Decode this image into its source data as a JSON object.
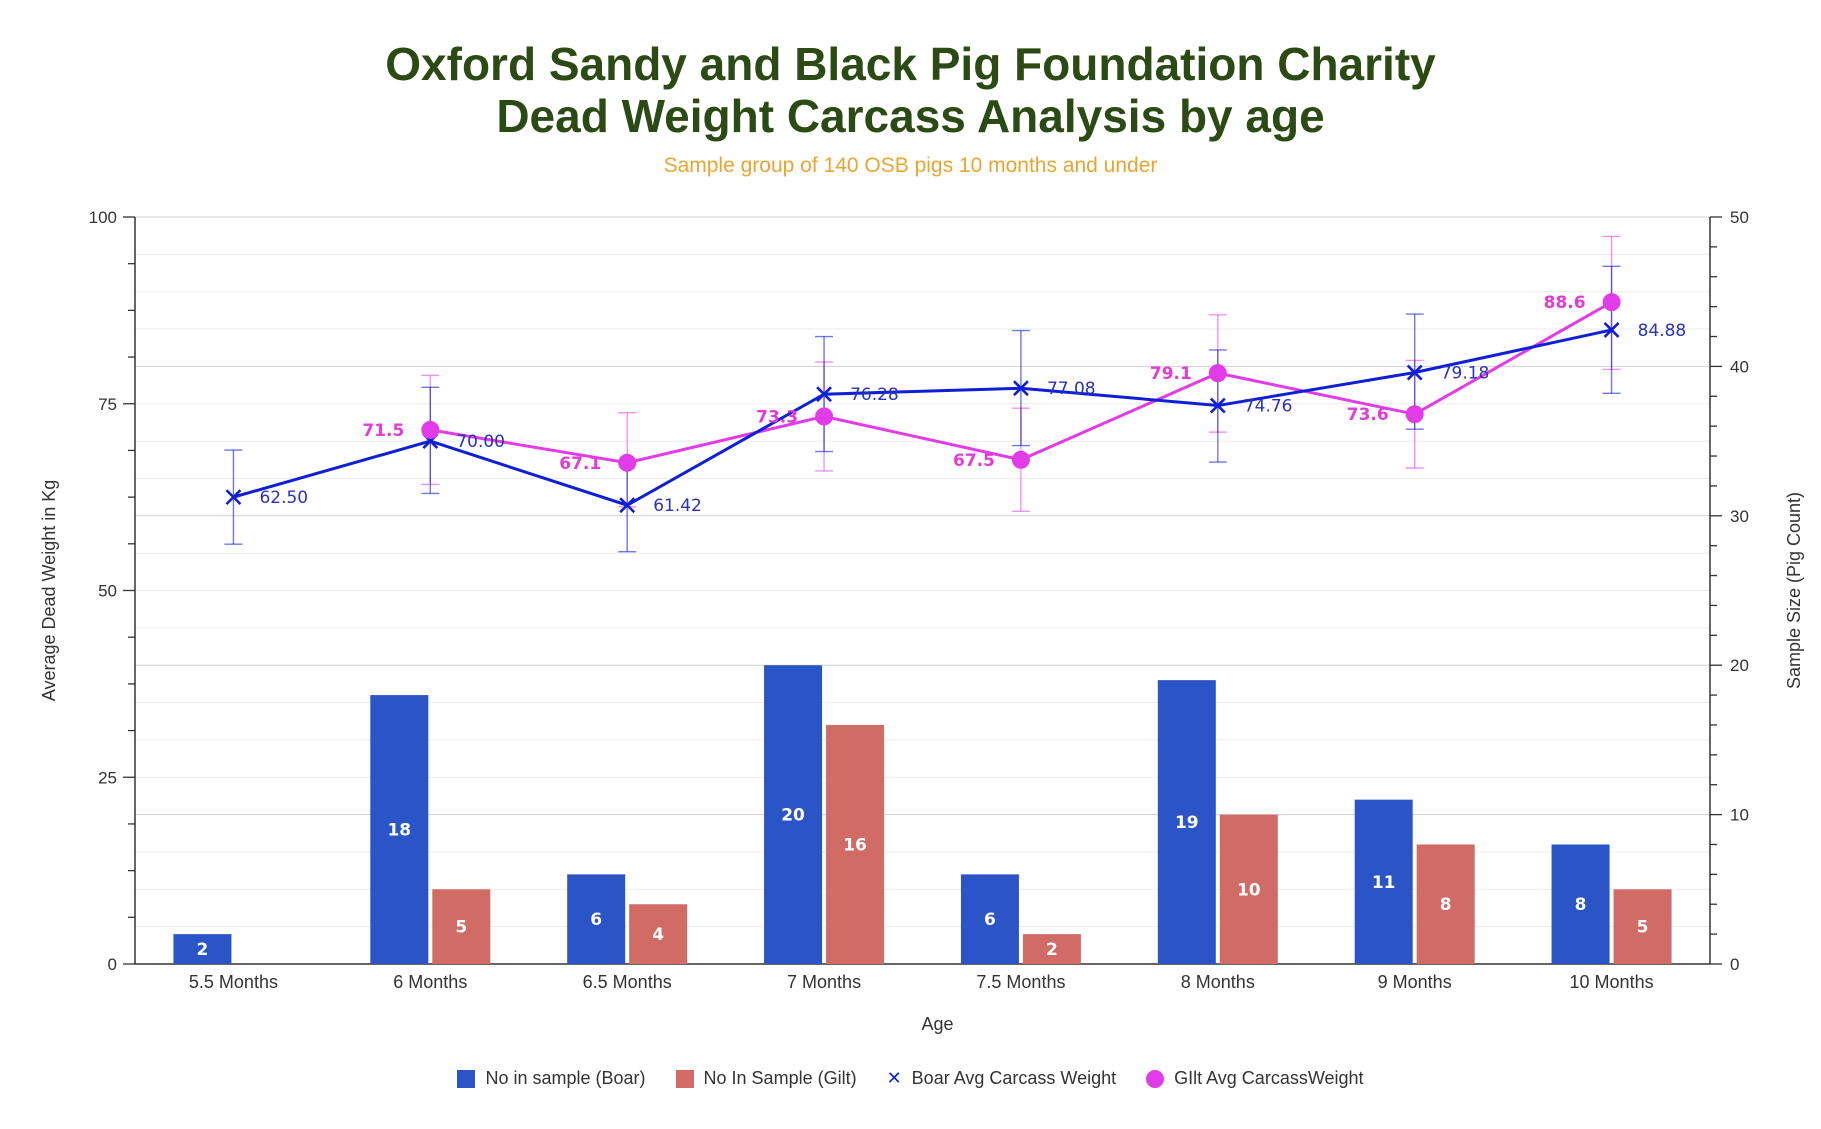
{
  "chart_data": {
    "type": "bar",
    "title_lines": [
      "Oxford Sandy and Black Pig Foundation Charity",
      "Dead Weight Carcass Analysis by age"
    ],
    "subtitle": "Sample group of 140 OSB pigs 10 months and under",
    "xlabel": "Age",
    "ylabel_left": "Average Dead Weight in Kg",
    "ylabel_right": "Sample Size (Pig Count)",
    "ylim_left": [
      0,
      100
    ],
    "yticks_left": [
      0,
      25,
      50,
      75,
      100
    ],
    "ylim_right": [
      0,
      50
    ],
    "yticks_right": [
      0,
      10,
      20,
      30,
      40,
      50
    ],
    "categories": [
      "5.5 Months",
      "6 Months",
      "6.5 Months",
      "7 Months",
      "7.5 Months",
      "8 Months",
      "9 Months",
      "10 Months"
    ],
    "series": [
      {
        "name": "No in sample (Boar)",
        "type": "bar",
        "axis": "right",
        "color": "#2b55c6",
        "values": [
          2,
          18,
          6,
          20,
          6,
          19,
          11,
          8
        ],
        "labels": [
          "2",
          "18",
          "6",
          "20",
          "6",
          "19",
          "11",
          "8"
        ]
      },
      {
        "name": "No In Sample (Gilt)",
        "type": "bar",
        "axis": "right",
        "color": "#d06b66",
        "values": [
          0,
          5,
          4,
          16,
          2,
          10,
          8,
          5
        ],
        "labels": [
          "",
          "5",
          "4",
          "16",
          "2",
          "10",
          "8",
          "5"
        ]
      },
      {
        "name": "Boar Avg Carcass Weight",
        "type": "line",
        "axis": "left",
        "color": "#0f1fd6",
        "marker": "x",
        "values": [
          62.5,
          70.0,
          61.42,
          76.28,
          77.08,
          74.76,
          79.18,
          84.88
        ],
        "labels": [
          "62.50",
          "70.00",
          "61.42",
          "76.28",
          "77.08",
          "74.76",
          "79.18",
          "84.88"
        ],
        "error_low": [
          56.2,
          63.0,
          55.2,
          68.6,
          69.4,
          67.2,
          71.6,
          76.4
        ],
        "error_high": [
          68.8,
          77.2,
          67.4,
          84.0,
          84.8,
          82.2,
          87.0,
          93.4
        ]
      },
      {
        "name": "GIlt Avg CarcassWeight",
        "type": "line",
        "axis": "left",
        "color": "#e23ce8",
        "marker": "circle",
        "values": [
          null,
          71.5,
          67.1,
          73.3,
          67.5,
          79.1,
          73.6,
          88.6
        ],
        "labels": [
          "",
          "71.5",
          "67.1",
          "73.3",
          "67.5",
          "79.1",
          "73.6",
          "88.6"
        ],
        "error_low": [
          null,
          64.2,
          61.2,
          66.0,
          60.6,
          71.2,
          66.4,
          79.6
        ],
        "error_high": [
          null,
          78.8,
          73.8,
          80.6,
          74.4,
          86.9,
          80.8,
          97.4
        ]
      }
    ],
    "legend_position": "bottom",
    "grid": true
  }
}
